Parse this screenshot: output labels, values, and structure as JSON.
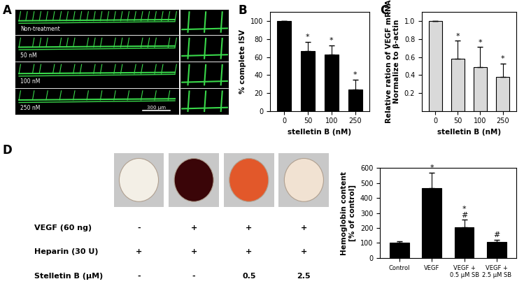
{
  "panel_labels": [
    "A",
    "B",
    "C",
    "D"
  ],
  "panel_a": {
    "image_labels": [
      "Non-treatment",
      "50 nM",
      "100 nM",
      "250 nM"
    ],
    "scale_bar": "300 µm"
  },
  "panel_d_table": {
    "rows": [
      {
        "label": "VEGF (60 ng)",
        "values": [
          "-",
          "+",
          "+",
          "+"
        ]
      },
      {
        "label": "Heparin (30 U)",
        "values": [
          "+",
          "+",
          "+",
          "+"
        ]
      },
      {
        "label": "Stelletin B (µM)",
        "values": [
          "-",
          "-",
          "0.5",
          "2.5"
        ]
      }
    ]
  },
  "chart_data": [
    {
      "type": "bar",
      "categories": [
        "0",
        "50",
        "100",
        "250"
      ],
      "values": [
        100,
        67,
        63,
        24
      ],
      "errors": [
        0,
        10,
        10,
        11
      ],
      "color": "#000000",
      "x_label": "stelletin B (nM)",
      "y_label": "% complete ISV",
      "ylim": [
        0,
        110
      ],
      "yticks": [
        0,
        20,
        40,
        60,
        80,
        100
      ],
      "annotations": [
        {
          "category": "50",
          "text": "*"
        },
        {
          "category": "100",
          "text": "*"
        },
        {
          "category": "250",
          "text": "*"
        }
      ]
    },
    {
      "type": "bar",
      "categories": [
        "0",
        "50",
        "100",
        "250"
      ],
      "values": [
        1.0,
        0.58,
        0.49,
        0.38
      ],
      "errors": [
        0,
        0.2,
        0.22,
        0.15
      ],
      "color": "#d9d9d9",
      "x_label": "stelletin B (nM)",
      "y_label": "Relative ration of VEGF mRNA\nNormalize to β-actin",
      "ylim": [
        0,
        1.1
      ],
      "yticks": [
        0.2,
        0.4,
        0.6,
        0.8,
        1.0
      ],
      "annotations": [
        {
          "category": "50",
          "text": "*"
        },
        {
          "category": "100",
          "text": "*"
        },
        {
          "category": "250",
          "text": "*"
        }
      ]
    },
    {
      "type": "bar",
      "categories": [
        "Control",
        "VEGF",
        "VEGF +\n0.5 µM SB",
        "VEGF +\n2.5 µM SB"
      ],
      "values": [
        100,
        465,
        205,
        108
      ],
      "errors": [
        10,
        105,
        50,
        15
      ],
      "color": "#000000",
      "y_label": "Hemoglobin content\n[% of control]",
      "ylim": [
        0,
        600
      ],
      "yticks": [
        0,
        100,
        200,
        300,
        400,
        500,
        600
      ],
      "annotations": [
        {
          "category": "VEGF",
          "text": "*"
        },
        {
          "category": "VEGF +\n0.5 µM SB",
          "text": "*\n#"
        },
        {
          "category": "VEGF +\n2.5 µM SB",
          "text": "#"
        }
      ]
    }
  ]
}
